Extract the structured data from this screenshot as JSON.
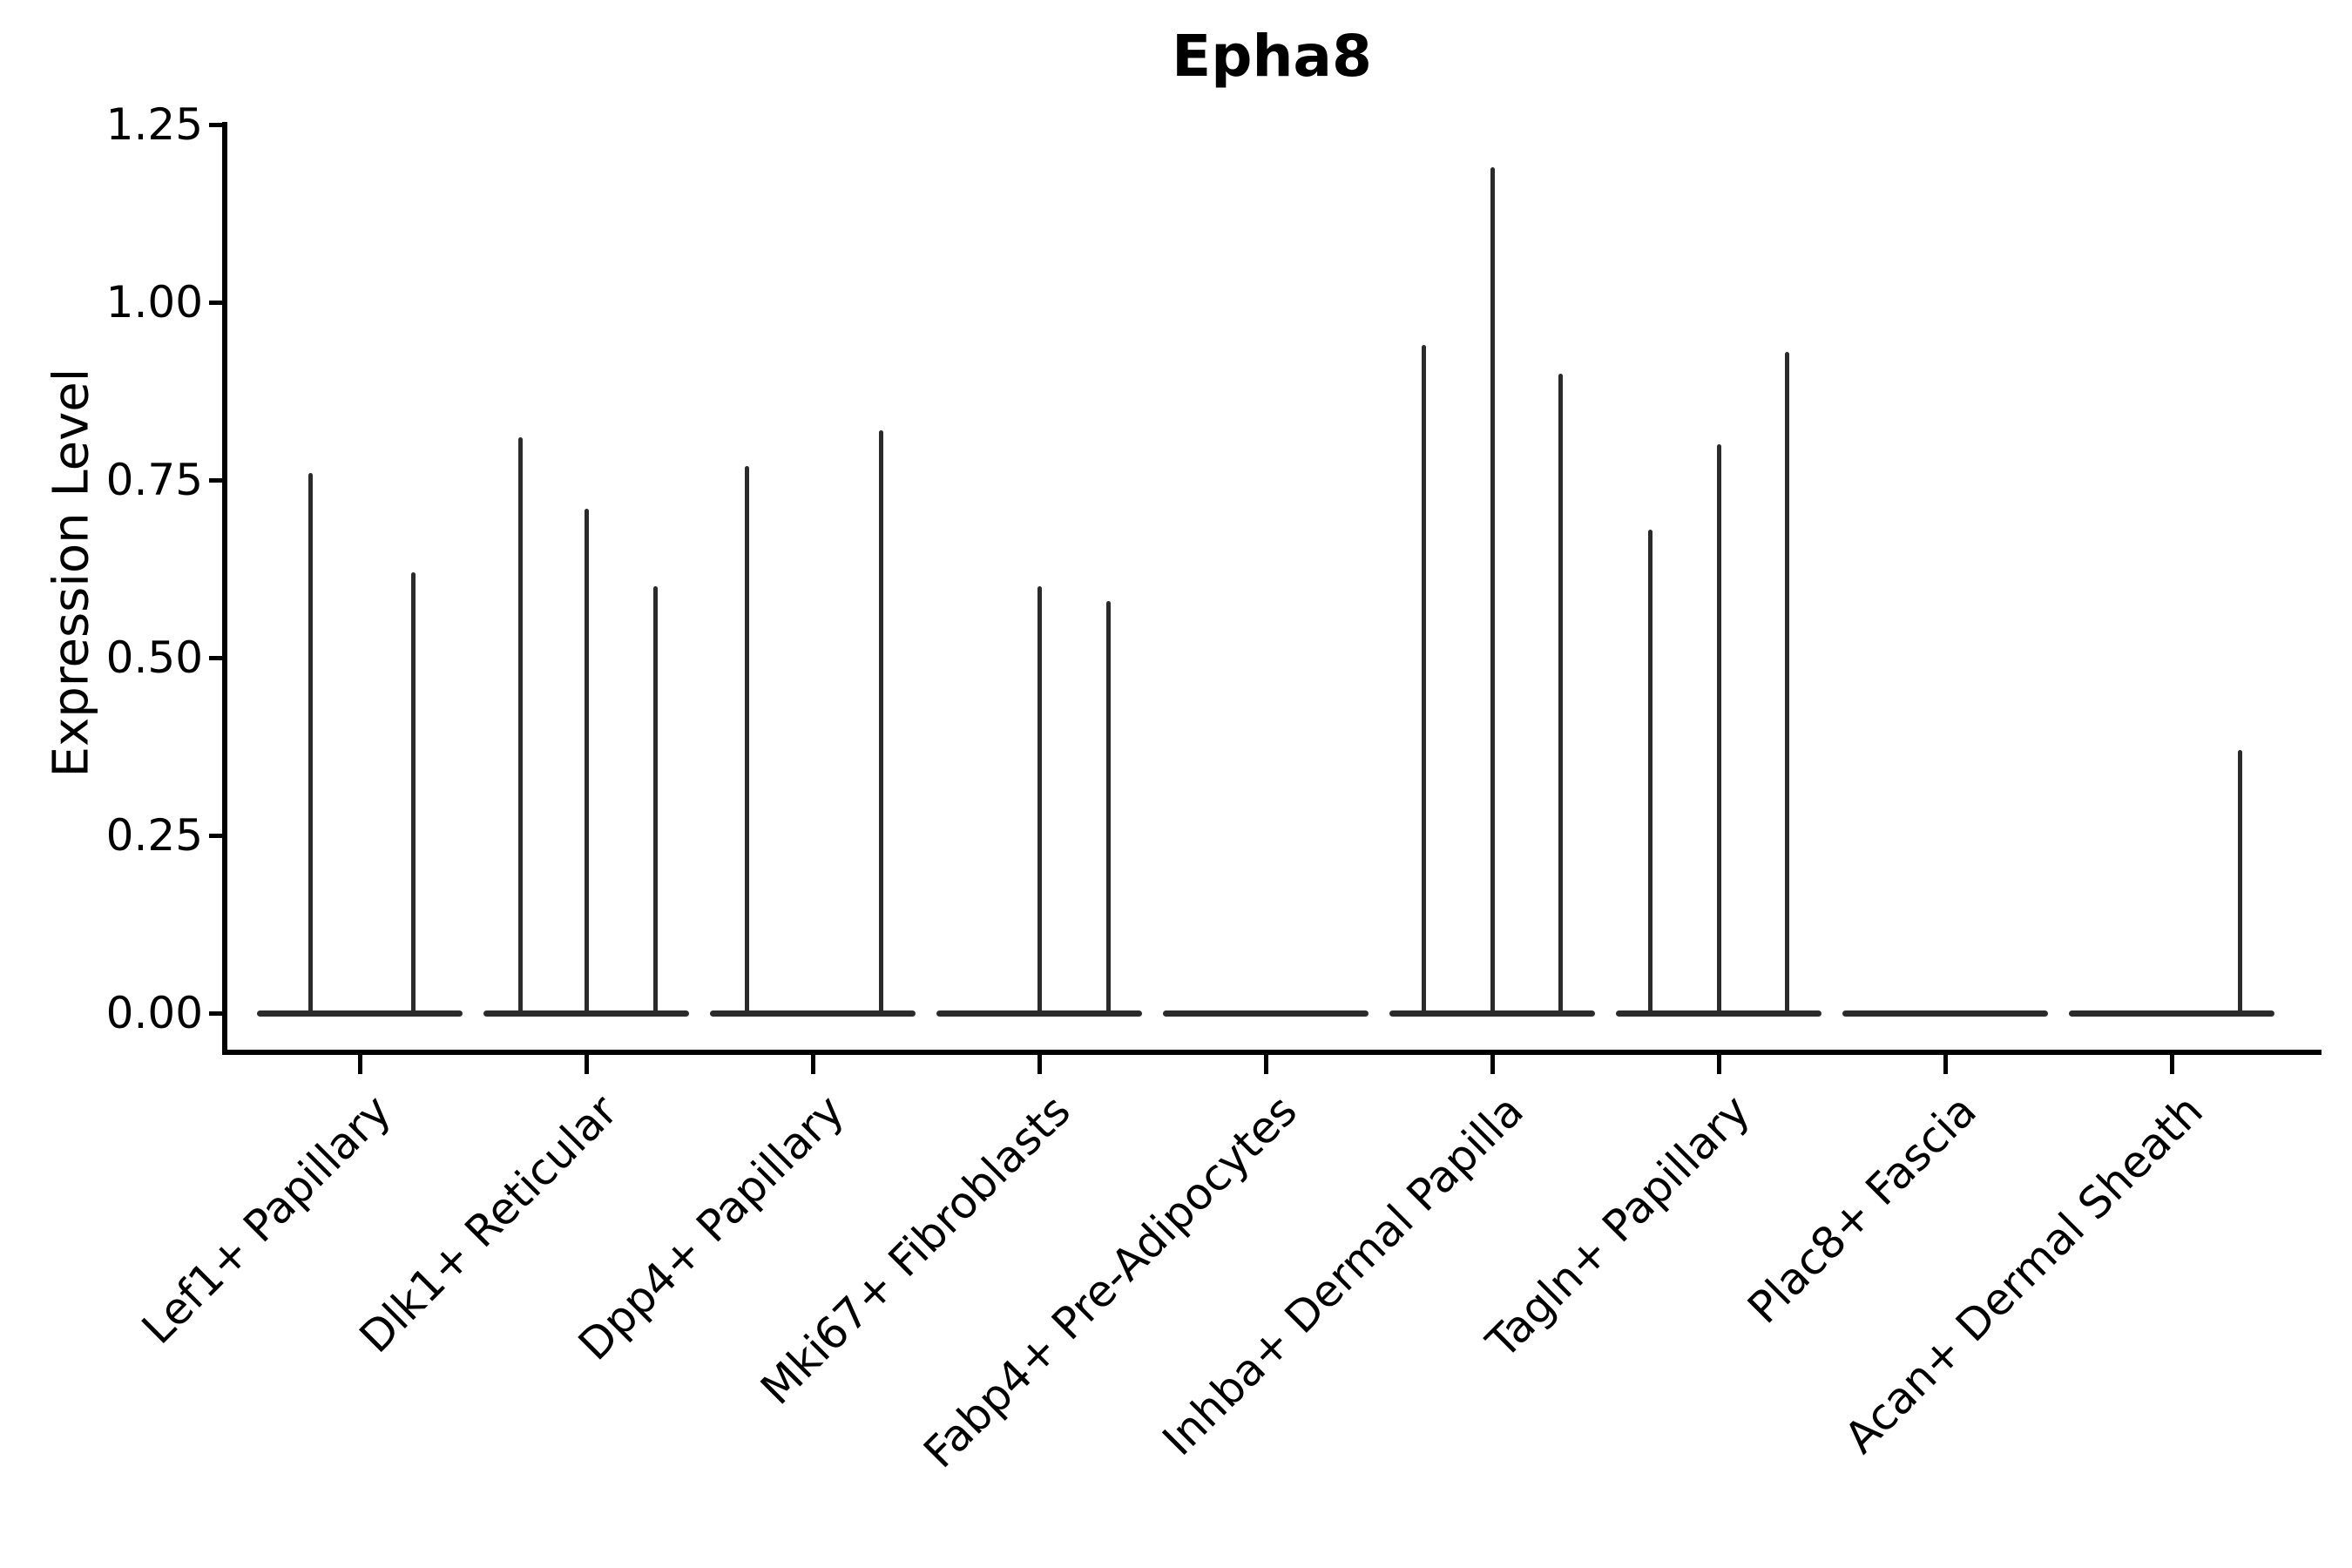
{
  "chart_data": {
    "type": "violin",
    "title": "Epha8",
    "ylabel": "Expression Level",
    "xlabel": "",
    "ylim": [
      0,
      1.25
    ],
    "yticks": [
      0.0,
      0.25,
      0.5,
      0.75,
      1.0,
      1.25
    ],
    "ytick_labels": [
      "0.00",
      "0.25",
      "0.50",
      "0.75",
      "1.00",
      "1.25"
    ],
    "grid": false,
    "legend": "none",
    "line_color": "#2b2b2b",
    "axis_color": "#000000",
    "background_color": "#ffffff",
    "categories": [
      "Lef1+ Papillary",
      "Dlk1+ Reticular",
      "Dpp4+ Papillary",
      "Mki67+ Fibroblasts",
      "Fabp4+ Pre-Adipocytes",
      "Inhba+ Dermal Papilla",
      "Tagln+ Papillary",
      "Plac8+ Fascia",
      "Acan+ Dermal Sheath"
    ],
    "series": [
      {
        "name": "Lef1+ Papillary",
        "spikes": [
          {
            "value": 0.76,
            "dx": -57
          },
          {
            "value": 0.62,
            "dx": 61
          }
        ]
      },
      {
        "name": "Dlk1+ Reticular",
        "spikes": [
          {
            "value": 0.81,
            "dx": -76
          },
          {
            "value": 0.71,
            "dx": 0
          },
          {
            "value": 0.6,
            "dx": 79
          }
        ]
      },
      {
        "name": "Dpp4+ Papillary",
        "spikes": [
          {
            "value": 0.77,
            "dx": -76
          },
          {
            "value": 0.82,
            "dx": 78
          }
        ]
      },
      {
        "name": "Mki67+ Fibroblasts",
        "spikes": [
          {
            "value": 0.6,
            "dx": 0
          },
          {
            "value": 0.58,
            "dx": 79
          }
        ]
      },
      {
        "name": "Fabp4+ Pre-Adipocytes",
        "spikes": []
      },
      {
        "name": "Inhba+ Dermal Papilla",
        "spikes": [
          {
            "value": 0.94,
            "dx": -79
          },
          {
            "value": 1.19,
            "dx": 0
          },
          {
            "value": 0.9,
            "dx": 78
          }
        ]
      },
      {
        "name": "Tagln+ Papillary",
        "spikes": [
          {
            "value": 0.68,
            "dx": -79
          },
          {
            "value": 0.8,
            "dx": 0
          },
          {
            "value": 0.93,
            "dx": 78
          }
        ]
      },
      {
        "name": "Plac8+ Fascia",
        "spikes": []
      },
      {
        "name": "Acan+ Dermal Sheath",
        "spikes": [
          {
            "value": 0.37,
            "dx": 78
          }
        ]
      }
    ]
  }
}
